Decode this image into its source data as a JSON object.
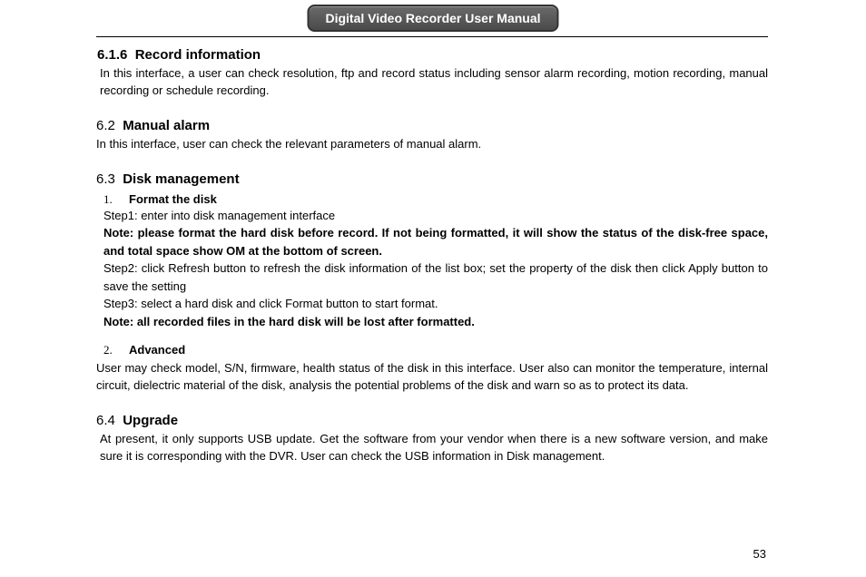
{
  "header": {
    "title": "Digital Video Recorder User Manual"
  },
  "sections": {
    "s616": {
      "number": "6.1.6",
      "title": "Record information",
      "body": "In this interface, a user can check resolution, ftp and record status including sensor alarm recording, motion recording, manual recording or schedule recording."
    },
    "s62": {
      "number": "6.2",
      "title": "Manual alarm",
      "body": "In this interface, user can check the relevant parameters of manual alarm."
    },
    "s63": {
      "number": "6.3",
      "title": "Disk management",
      "list1": {
        "num": "1.",
        "label": "Format the disk"
      },
      "step1": "Step1: enter into disk management interface",
      "note1": "Note: please format the hard disk before record. If not being formatted, it will show the status of the disk-free space, and total space show OM at the bottom of screen.",
      "step2": "Step2: click Refresh button to refresh the disk information of the list box; set the property of the disk then click Apply button to save the setting",
      "step3": "Step3: select a hard disk and click Format button to start format.",
      "note2": "Note: all recorded files in the hard disk will be lost after formatted.",
      "list2": {
        "num": "2.",
        "label": "Advanced"
      },
      "advanced_body": "User may check model, S/N, firmware, health status of the disk in this interface. User also can monitor the temperature, internal circuit, dielectric material of the disk, analysis the potential problems of the disk and warn so as to protect its data."
    },
    "s64": {
      "number": "6.4",
      "title": "Upgrade",
      "body": "At present, it only supports USB update. Get the software from your vendor when there is a new software version, and make sure it is corresponding with the DVR. User can check the USB information in Disk management."
    }
  },
  "page_number": "53"
}
